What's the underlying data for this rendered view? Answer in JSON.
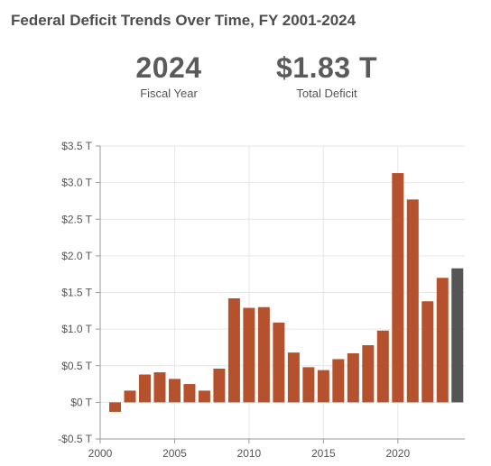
{
  "header": {
    "title": "Federal Deficit Trends Over Time, FY 2001-2024"
  },
  "stats": {
    "year_value": "2024",
    "year_label": "Fiscal Year",
    "deficit_value": "$1.83 T",
    "deficit_label": "Total Deficit"
  },
  "colors": {
    "bar": "#b5522d",
    "highlight_bar": "#555555",
    "grid": "#e6e6e6",
    "axis": "#999999"
  },
  "chart_data": {
    "type": "bar",
    "title": "Federal Deficit Trends Over Time, FY 2001-2024",
    "xlabel": "",
    "ylabel": "",
    "x": [
      2001,
      2002,
      2003,
      2004,
      2005,
      2006,
      2007,
      2008,
      2009,
      2010,
      2011,
      2012,
      2013,
      2014,
      2015,
      2016,
      2017,
      2018,
      2019,
      2020,
      2021,
      2022,
      2023,
      2024
    ],
    "values": [
      -0.13,
      0.16,
      0.38,
      0.41,
      0.32,
      0.25,
      0.16,
      0.46,
      1.42,
      1.29,
      1.3,
      1.09,
      0.68,
      0.48,
      0.44,
      0.59,
      0.67,
      0.78,
      0.98,
      3.13,
      2.77,
      1.38,
      1.7,
      1.83
    ],
    "highlight": 2024,
    "xlim": [
      2000,
      2024.5
    ],
    "ylim": [
      -0.5,
      3.5
    ],
    "y_ticks": [
      {
        "value": 3.5,
        "label": "$3.5 T"
      },
      {
        "value": 3.0,
        "label": "$3.0 T"
      },
      {
        "value": 2.5,
        "label": "$2.5 T"
      },
      {
        "value": 2.0,
        "label": "$2.0 T"
      },
      {
        "value": 1.5,
        "label": "$1.5 T"
      },
      {
        "value": 1.0,
        "label": "$1.0 T"
      },
      {
        "value": 0.5,
        "label": "$0.5 T"
      },
      {
        "value": 0.0,
        "label": "$0 T"
      },
      {
        "value": -0.5,
        "label": "-$0.5 T"
      }
    ],
    "x_ticks": [
      {
        "value": 2000,
        "label": "2000"
      },
      {
        "value": 2005,
        "label": "2005"
      },
      {
        "value": 2010,
        "label": "2010"
      },
      {
        "value": 2015,
        "label": "2015"
      },
      {
        "value": 2020,
        "label": "2020"
      }
    ],
    "grid": true
  }
}
